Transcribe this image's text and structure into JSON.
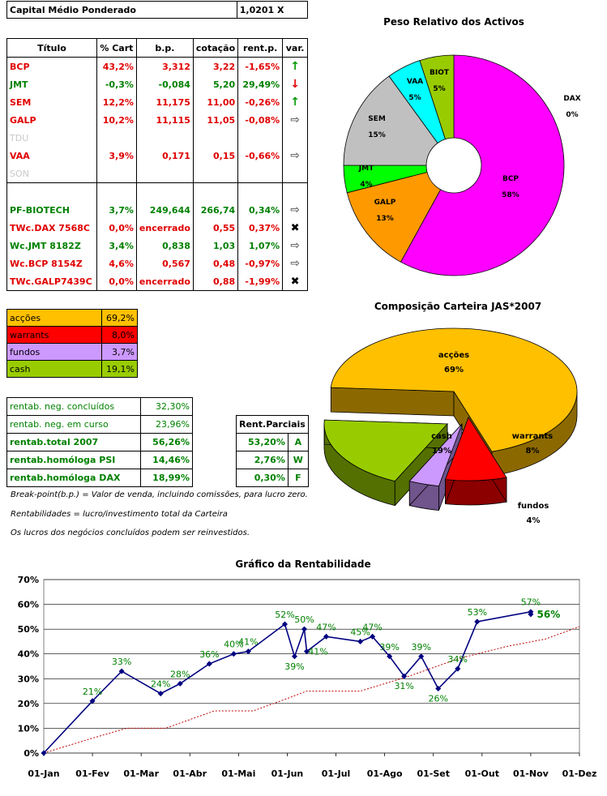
{
  "header": {
    "label": "Capital Médio Ponderado",
    "value": "1,0201 X"
  },
  "portfolio": {
    "columns": [
      "Título",
      "% Cart",
      "b.p.",
      "cotação",
      "rent.p.",
      "var."
    ],
    "rows": [
      {
        "titulo": "BCP",
        "cart": "43,2%",
        "bp": "3,312",
        "cot": "3,22",
        "rent": "-1,65%",
        "var": "up",
        "color": "red"
      },
      {
        "titulo": "JMT",
        "cart": "-0,3%",
        "bp": "-0,084",
        "cot": "5,20",
        "rent": "29,49%",
        "var": "down",
        "color": "green"
      },
      {
        "titulo": "SEM",
        "cart": "12,2%",
        "bp": "11,175",
        "cot": "11,00",
        "rent": "-0,26%",
        "var": "up",
        "color": "red"
      },
      {
        "titulo": "GALP",
        "cart": "10,2%",
        "bp": "11,115",
        "cot": "11,05",
        "rent": "-0,08%",
        "var": "right",
        "color": "red"
      },
      {
        "titulo": "TDU",
        "cart": "",
        "bp": "",
        "cot": "",
        "rent": "",
        "var": "",
        "color": "grey"
      },
      {
        "titulo": "VAA",
        "cart": "3,9%",
        "bp": "0,171",
        "cot": "0,15",
        "rent": "-0,66%",
        "var": "right",
        "color": "red"
      },
      {
        "titulo": "SON",
        "cart": "",
        "bp": "",
        "cot": "",
        "rent": "",
        "var": "",
        "color": "grey"
      },
      {
        "titulo": "",
        "cart": "",
        "bp": "",
        "cot": "",
        "rent": "",
        "var": "",
        "color": "grey"
      },
      {
        "titulo": "PF-BIOTECH",
        "cart": "3,7%",
        "bp": "249,644",
        "cot": "266,74",
        "rent": "0,34%",
        "var": "right",
        "color": "green"
      },
      {
        "titulo": "TWc.DAX 7568C",
        "cart": "0,0%",
        "bp": "encerrado",
        "cot": "0,55",
        "rent": "0,37%",
        "var": "x",
        "color": "red"
      },
      {
        "titulo": "Wc.JMT 8182Z",
        "cart": "3,4%",
        "bp": "0,838",
        "cot": "1,03",
        "rent": "1,07%",
        "var": "right",
        "color": "green"
      },
      {
        "titulo": "Wc.BCP 8154Z",
        "cart": "4,6%",
        "bp": "0,567",
        "cot": "0,48",
        "rent": "-0,97%",
        "var": "right",
        "color": "red"
      },
      {
        "titulo": "TWc.GALP7439C",
        "cart": "0,0%",
        "bp": "encerrado",
        "cot": "0,88",
        "rent": "-1,99%",
        "var": "x",
        "color": "red"
      }
    ]
  },
  "composition_table": [
    {
      "label": "acções",
      "value": "69,2%",
      "bg": "#ffc000"
    },
    {
      "label": "warrants",
      "value": "8,0%",
      "bg": "#ff0000"
    },
    {
      "label": "fundos",
      "value": "3,7%",
      "bg": "#cc99ff"
    },
    {
      "label": "cash",
      "value": "19,1%",
      "bg": "#99cc00"
    }
  ],
  "rent_table": [
    {
      "label": "rentab. neg. concluídos",
      "value": "32,30%",
      "bold": false
    },
    {
      "label": "rentab. neg. em curso",
      "value": "23,96%",
      "bold": false
    },
    {
      "label": "rentab.total 2007",
      "value": "56,26%",
      "bold": true
    },
    {
      "label": "rentab.homóloga PSI",
      "value": "14,46%",
      "bold": true
    },
    {
      "label": "rentab.homóloga DAX",
      "value": "18,99%",
      "bold": true
    }
  ],
  "rent_parciais": {
    "title": "Rent.Parciais",
    "rows": [
      {
        "value": "53,20%",
        "letter": "A"
      },
      {
        "value": "2,76%",
        "letter": "W"
      },
      {
        "value": "0,30%",
        "letter": "F"
      }
    ]
  },
  "notes": [
    "Break-point(b.p.) = Valor de venda, incluindo comissões, para lucro zero.",
    "Rentabilidades = lucro/investimento total da Carteira",
    "Os lucros dos negócios concluídos podem ser reinvestidos."
  ],
  "colors": {
    "positive": "#008000",
    "negative": "#e00000",
    "line": "#000080",
    "trend": "#c00000"
  },
  "chart_data": [
    {
      "type": "pie",
      "title": "Peso Relativo dos Activos",
      "donut": true,
      "slices": [
        {
          "name": "BCP",
          "pct": "58%",
          "value": 58,
          "color": "#ff00ff"
        },
        {
          "name": "GALP",
          "pct": "13%",
          "value": 13,
          "color": "#ff9900"
        },
        {
          "name": "JMT",
          "pct": "4%",
          "value": 4,
          "color": "#00ff00"
        },
        {
          "name": "SEM",
          "pct": "15%",
          "value": 15,
          "color": "#c0c0c0"
        },
        {
          "name": "VAA",
          "pct": "5%",
          "value": 5,
          "color": "#00ffff"
        },
        {
          "name": "BIOT",
          "pct": "5%",
          "value": 5,
          "color": "#99cc00"
        },
        {
          "name": "DAX",
          "pct": "0%",
          "value": 0,
          "color": "#ffff00"
        }
      ]
    },
    {
      "type": "pie",
      "title": "Composição Carteira JAS*2007",
      "style": "3d-exploded",
      "slices": [
        {
          "name": "acções",
          "pct": "69%",
          "value": 69,
          "color": "#ffc000"
        },
        {
          "name": "warrants",
          "pct": "8%",
          "value": 8,
          "color": "#ff0000"
        },
        {
          "name": "fundos",
          "pct": "4%",
          "value": 4,
          "color": "#cc99ff"
        },
        {
          "name": "cash",
          "pct": "19%",
          "value": 19,
          "color": "#99cc00"
        }
      ]
    },
    {
      "type": "line",
      "title": "Gráfico da Rentabilidade",
      "x_categories": [
        "01-Jan",
        "01-Fev",
        "01-Mar",
        "01-Abr",
        "01-Mai",
        "01-Jun",
        "01-Jul",
        "01-Ago",
        "01-Set",
        "01-Out",
        "01-Nov",
        "01-Dez"
      ],
      "ylim": [
        0,
        70
      ],
      "yticks": [
        "0%",
        "10%",
        "20%",
        "30%",
        "40%",
        "50%",
        "60%",
        "70%"
      ],
      "grid": true,
      "series": [
        {
          "style": "solid-markers",
          "points": [
            {
              "x": 0.0,
              "y": 0,
              "label": ""
            },
            {
              "x": 1.0,
              "y": 21,
              "label": "21%"
            },
            {
              "x": 1.6,
              "y": 33,
              "label": "33%"
            },
            {
              "x": 2.4,
              "y": 24,
              "label": "24%"
            },
            {
              "x": 2.8,
              "y": 28,
              "label": "28%"
            },
            {
              "x": 3.4,
              "y": 36,
              "label": "36%"
            },
            {
              "x": 3.9,
              "y": 40,
              "label": "40%"
            },
            {
              "x": 4.2,
              "y": 41,
              "label": "41%"
            },
            {
              "x": 4.95,
              "y": 52,
              "label": "52%"
            },
            {
              "x": 5.15,
              "y": 39,
              "label": "39%"
            },
            {
              "x": 5.35,
              "y": 50,
              "label": "50%"
            },
            {
              "x": 5.4,
              "y": 41,
              "label": "41%"
            },
            {
              "x": 5.8,
              "y": 47,
              "label": "47%"
            },
            {
              "x": 6.5,
              "y": 45,
              "label": "45%"
            },
            {
              "x": 6.75,
              "y": 47,
              "label": "47%"
            },
            {
              "x": 7.1,
              "y": 39,
              "label": "39%"
            },
            {
              "x": 7.4,
              "y": 31,
              "label": "31%"
            },
            {
              "x": 7.75,
              "y": 39,
              "label": "39%"
            },
            {
              "x": 8.1,
              "y": 26,
              "label": "26%"
            },
            {
              "x": 8.5,
              "y": 34,
              "label": "34%"
            },
            {
              "x": 8.9,
              "y": 53,
              "label": "53%"
            },
            {
              "x": 10.0,
              "y": 57,
              "label": "57%"
            },
            {
              "x": 10.0,
              "y": 56,
              "label": "56%"
            }
          ]
        },
        {
          "style": "dotted",
          "points": [
            {
              "x": 0,
              "y": 0
            },
            {
              "x": 1,
              "y": 6
            },
            {
              "x": 1.7,
              "y": 10
            },
            {
              "x": 2.5,
              "y": 10
            },
            {
              "x": 3.5,
              "y": 17
            },
            {
              "x": 4.3,
              "y": 17
            },
            {
              "x": 5.0,
              "y": 22
            },
            {
              "x": 5.4,
              "y": 25
            },
            {
              "x": 6.5,
              "y": 25
            },
            {
              "x": 7.5,
              "y": 31
            },
            {
              "x": 8.5,
              "y": 38
            },
            {
              "x": 9.5,
              "y": 43
            },
            {
              "x": 10.3,
              "y": 46
            },
            {
              "x": 11.0,
              "y": 51
            }
          ]
        }
      ]
    }
  ]
}
